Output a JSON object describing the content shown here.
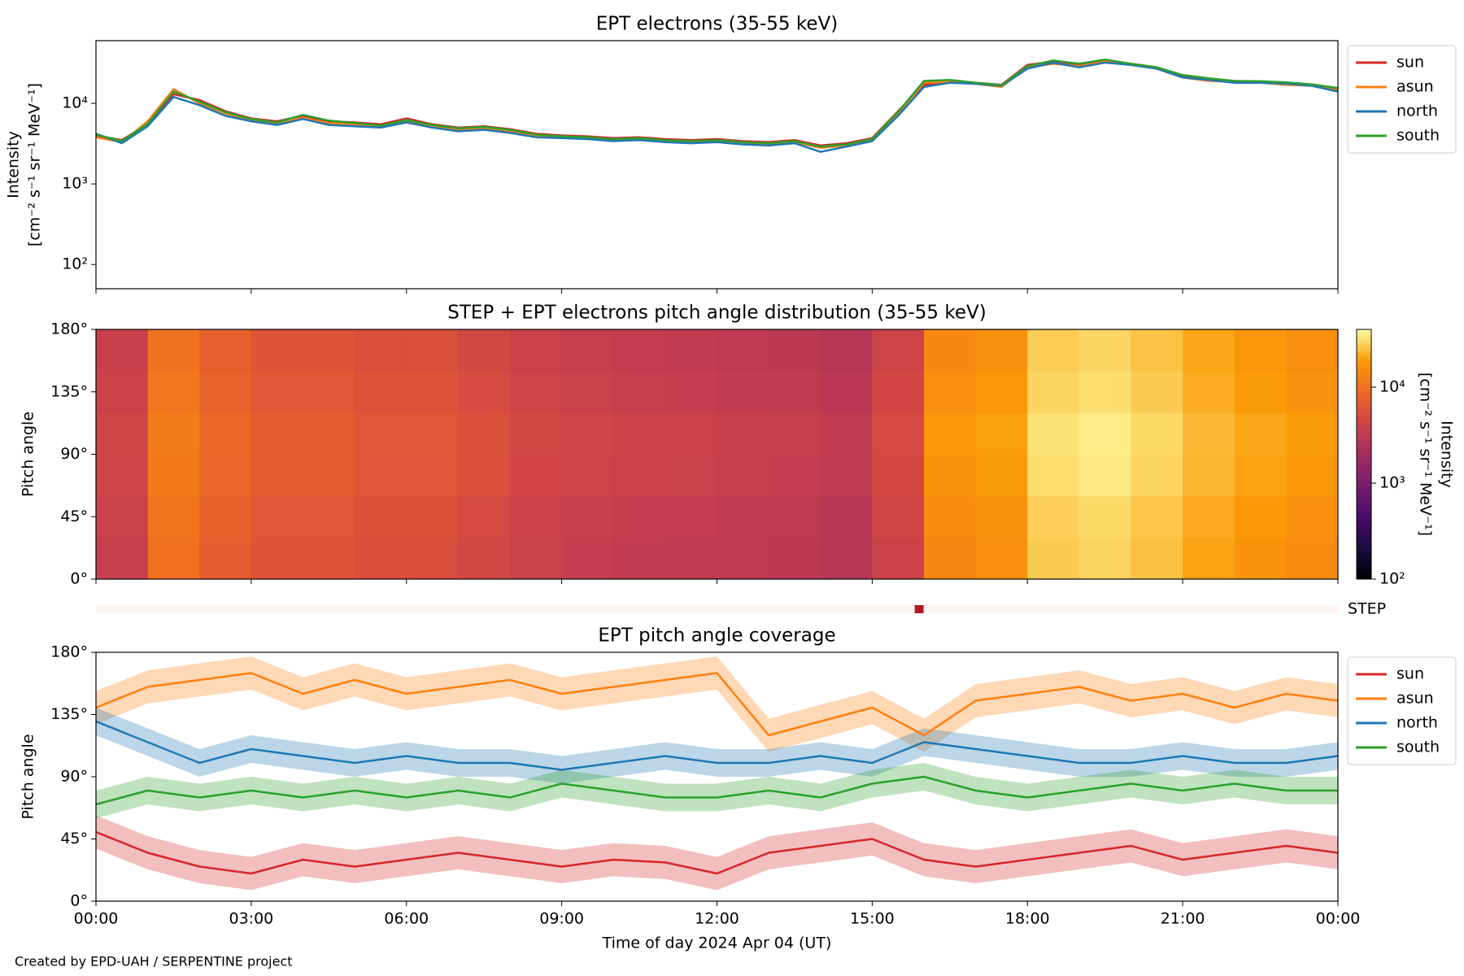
{
  "chart_data": [
    {
      "type": "line",
      "title": "EPT electrons (35-55 keV)",
      "ylabel": [
        "Intensity",
        "[cm⁻² s⁻¹ sr⁻¹ MeV⁻¹]"
      ],
      "log_y": true,
      "xlim": [
        0,
        24
      ],
      "xticks": [
        0,
        3,
        6,
        9,
        12,
        15,
        18,
        21,
        24
      ],
      "ylim": [
        50,
        60000
      ],
      "yticks": [
        {
          "value": 100,
          "label": "10²"
        },
        {
          "value": 1000,
          "label": "10³"
        },
        {
          "value": 10000,
          "label": "10⁴"
        }
      ],
      "legend": "outside-upper-right",
      "x": [
        0,
        0.5,
        1,
        1.5,
        2,
        2.5,
        3,
        3.5,
        4,
        4.5,
        5,
        5.5,
        6,
        6.5,
        7,
        7.5,
        8,
        8.5,
        9,
        9.5,
        10,
        10.5,
        11,
        11.5,
        12,
        12.5,
        13,
        13.5,
        14,
        14.5,
        15,
        15.5,
        16,
        16.5,
        17,
        17.5,
        18,
        18.5,
        19,
        19.5,
        20,
        20.5,
        21,
        21.5,
        22,
        22.5,
        23,
        23.5,
        24
      ],
      "series": [
        {
          "name": "sun",
          "color": "#d62728",
          "values": [
            4000,
            3500,
            5500,
            13000,
            11000,
            8000,
            6500,
            6000,
            7000,
            6000,
            5800,
            5500,
            6500,
            5500,
            5000,
            5200,
            4800,
            4200,
            4000,
            3900,
            3700,
            3800,
            3600,
            3500,
            3600,
            3400,
            3300,
            3500,
            3000,
            3200,
            3700,
            8000,
            17000,
            19000,
            18000,
            17000,
            30000,
            33000,
            30000,
            34000,
            31000,
            28000,
            22000,
            20000,
            19000,
            18500,
            18000,
            17000,
            15000
          ]
        },
        {
          "name": "asun",
          "color": "#ff7f0e",
          "values": [
            3800,
            3300,
            6000,
            15000,
            10000,
            7500,
            6200,
            5600,
            6600,
            5700,
            5500,
            5100,
            6000,
            5200,
            4700,
            4900,
            4500,
            4000,
            3800,
            3700,
            3500,
            3600,
            3400,
            3300,
            3400,
            3200,
            3100,
            3300,
            2800,
            3000,
            3500,
            7500,
            18000,
            18500,
            17500,
            16000,
            28000,
            31000,
            29000,
            33000,
            30000,
            27000,
            21000,
            19000,
            18500,
            18000,
            17000,
            16500,
            14500
          ]
        },
        {
          "name": "north",
          "color": "#1f77b4",
          "values": [
            4200,
            3200,
            5200,
            12000,
            9500,
            7000,
            6000,
            5400,
            6400,
            5400,
            5200,
            5000,
            5800,
            5000,
            4500,
            4700,
            4300,
            3800,
            3700,
            3600,
            3400,
            3500,
            3300,
            3200,
            3300,
            3100,
            3000,
            3200,
            2500,
            2900,
            3400,
            7000,
            16000,
            18000,
            17500,
            16500,
            27000,
            32000,
            28000,
            32000,
            30000,
            27000,
            21000,
            19500,
            18000,
            18000,
            17500,
            16500,
            14000
          ]
        },
        {
          "name": "south",
          "color": "#2ca02c",
          "values": [
            4100,
            3400,
            5600,
            14000,
            10500,
            7800,
            6400,
            5800,
            7200,
            6100,
            5700,
            5300,
            6200,
            5400,
            4900,
            5100,
            4700,
            4100,
            3900,
            3800,
            3600,
            3700,
            3500,
            3400,
            3500,
            3300,
            3200,
            3400,
            2900,
            3100,
            3600,
            7800,
            19000,
            19500,
            18000,
            16800,
            29000,
            34000,
            31000,
            35000,
            31000,
            28000,
            22500,
            20500,
            19000,
            18800,
            18200,
            17200,
            15500
          ]
        }
      ]
    },
    {
      "type": "heatmap",
      "title": "STEP + EPT electrons pitch angle distribution (35-55 keV)",
      "ylabel": [
        "Pitch angle"
      ],
      "xlim": [
        0,
        24
      ],
      "xticks": [
        0,
        3,
        6,
        9,
        12,
        15,
        18,
        21,
        24
      ],
      "ylim": [
        0,
        180
      ],
      "yticks": [
        {
          "value": 0,
          "label": "0°"
        },
        {
          "value": 45,
          "label": "45°"
        },
        {
          "value": 90,
          "label": "90°"
        },
        {
          "value": 135,
          "label": "135°"
        },
        {
          "value": 180,
          "label": "180°"
        }
      ],
      "x": [
        0,
        1,
        2,
        3,
        4,
        5,
        6,
        7,
        8,
        9,
        10,
        11,
        12,
        13,
        14,
        15,
        16,
        17,
        18,
        19,
        20,
        21,
        22,
        23,
        24
      ],
      "y": [
        0,
        30,
        60,
        90,
        120,
        150,
        180
      ],
      "values": [
        [
          3600,
          9900,
          7200,
          5900,
          5900,
          5200,
          5200,
          4500,
          3800,
          3500,
          3300,
          3200,
          3100,
          3000,
          2700,
          4000,
          14000,
          16000,
          27000,
          29000,
          25000,
          20000,
          17000,
          15000
        ],
        [
          3800,
          10500,
          7600,
          6200,
          6200,
          5500,
          5500,
          4800,
          4000,
          3700,
          3500,
          3400,
          3200,
          3100,
          2800,
          4300,
          15000,
          17000,
          28000,
          30000,
          26000,
          21000,
          18000,
          16000
        ],
        [
          4200,
          11500,
          8400,
          6800,
          6800,
          6100,
          6100,
          5300,
          4400,
          4100,
          3900,
          3800,
          3600,
          3500,
          3200,
          4700,
          17000,
          19000,
          31000,
          34000,
          29000,
          23000,
          20000,
          18000
        ],
        [
          4300,
          11800,
          8600,
          7000,
          7000,
          6200,
          6200,
          5400,
          4500,
          4200,
          4000,
          3900,
          3700,
          3600,
          3300,
          4800,
          17500,
          19500,
          32000,
          35000,
          30000,
          23500,
          20500,
          18500
        ],
        [
          3900,
          10800,
          7800,
          6400,
          6400,
          5700,
          5700,
          4900,
          4100,
          3800,
          3600,
          3500,
          3300,
          3200,
          2900,
          4400,
          15500,
          17500,
          29000,
          31000,
          27000,
          21500,
          18500,
          16500
        ],
        [
          3700,
          10200,
          7400,
          6000,
          6000,
          5300,
          5300,
          4600,
          3900,
          3600,
          3400,
          3300,
          3100,
          3000,
          2700,
          4100,
          14500,
          16500,
          27500,
          29500,
          25500,
          20500,
          17500,
          15500
        ]
      ],
      "clim": [
        100,
        40000
      ],
      "colorbar_ticks": [
        {
          "value": 100,
          "label": "10²"
        },
        {
          "value": 1000,
          "label": "10³"
        },
        {
          "value": 10000,
          "label": "10⁴"
        }
      ],
      "colorbar_label": [
        "Intensity",
        "[cm⁻² s⁻¹ sr⁻¹ MeV⁻¹]"
      ],
      "colormap": [
        "#000004",
        "#1b0c41",
        "#4a0c6b",
        "#781c6d",
        "#a52c60",
        "#cf4446",
        "#ed6925",
        "#fb9b06",
        "#fcffa4"
      ]
    },
    {
      "type": "strip",
      "label": "STEP",
      "xlim": [
        0,
        24
      ],
      "x": [
        15.9
      ],
      "color": "#b2182b",
      "background": "#fff5f0"
    },
    {
      "type": "coverage",
      "title": "EPT pitch angle coverage",
      "ylabel": [
        "Pitch angle"
      ],
      "xlabel": "Time of day 2024 Apr 04 (UT)",
      "xlim": [
        0,
        24
      ],
      "xticks": [
        {
          "value": 0,
          "label": "00:00"
        },
        {
          "value": 3,
          "label": "03:00"
        },
        {
          "value": 6,
          "label": "06:00"
        },
        {
          "value": 9,
          "label": "09:00"
        },
        {
          "value": 12,
          "label": "12:00"
        },
        {
          "value": 15,
          "label": "15:00"
        },
        {
          "value": 18,
          "label": "18:00"
        },
        {
          "value": 21,
          "label": "21:00"
        },
        {
          "value": 24,
          "label": "00:00"
        }
      ],
      "ylim": [
        0,
        180
      ],
      "yticks": [
        {
          "value": 0,
          "label": "0°"
        },
        {
          "value": 45,
          "label": "45°"
        },
        {
          "value": 90,
          "label": "90°"
        },
        {
          "value": 135,
          "label": "135°"
        },
        {
          "value": 180,
          "label": "180°"
        }
      ],
      "legend": "outside-upper-right",
      "x": [
        0,
        1,
        2,
        3,
        4,
        5,
        6,
        7,
        8,
        9,
        10,
        11,
        12,
        13,
        14,
        15,
        16,
        17,
        18,
        19,
        20,
        21,
        22,
        23,
        24
      ],
      "series": [
        {
          "name": "sun",
          "color": "#d62728",
          "spread": 12,
          "values": [
            50,
            35,
            25,
            20,
            30,
            25,
            30,
            35,
            30,
            25,
            30,
            28,
            20,
            35,
            40,
            45,
            30,
            25,
            30,
            35,
            40,
            30,
            35,
            40,
            35
          ]
        },
        {
          "name": "asun",
          "color": "#ff7f0e",
          "spread": 12,
          "values": [
            140,
            155,
            160,
            165,
            150,
            160,
            150,
            155,
            160,
            150,
            155,
            160,
            165,
            120,
            130,
            140,
            120,
            145,
            150,
            155,
            145,
            150,
            140,
            150,
            145
          ]
        },
        {
          "name": "north",
          "color": "#1f77b4",
          "spread": 10,
          "values": [
            130,
            115,
            100,
            110,
            105,
            100,
            105,
            100,
            100,
            95,
            100,
            105,
            100,
            100,
            105,
            100,
            115,
            110,
            105,
            100,
            100,
            105,
            100,
            100,
            105
          ]
        },
        {
          "name": "south",
          "color": "#2ca02c",
          "spread": 10,
          "values": [
            70,
            80,
            75,
            80,
            75,
            80,
            75,
            80,
            75,
            85,
            80,
            75,
            75,
            80,
            75,
            85,
            90,
            80,
            75,
            80,
            85,
            80,
            85,
            80,
            80
          ]
        }
      ]
    }
  ],
  "footer": "Created by EPD-UAH / SERPENTINE project"
}
